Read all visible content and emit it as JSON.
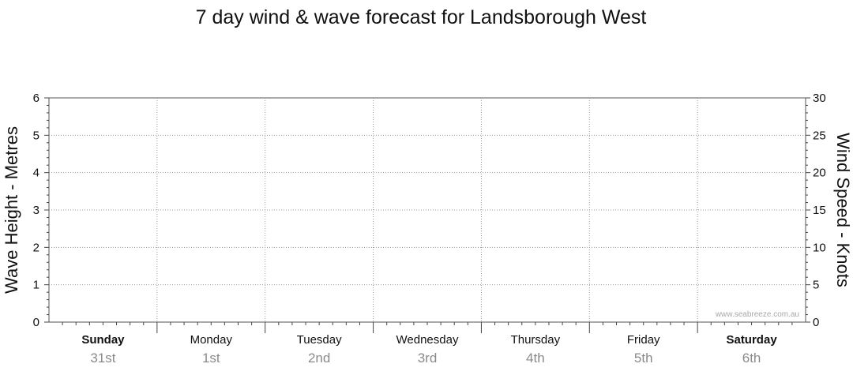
{
  "chart_data": {
    "type": "line",
    "title": "7 day wind & wave forecast for Landsborough West",
    "y_left": {
      "label": "Wave Height - Metres",
      "range": [
        0,
        6
      ],
      "ticks": [
        "0",
        "1",
        "2",
        "3",
        "4",
        "5",
        "6"
      ]
    },
    "y_right": {
      "label": "Wind Speed - Knots",
      "range": [
        0,
        30
      ],
      "ticks": [
        "0",
        "5",
        "10",
        "15",
        "20",
        "25",
        "30"
      ]
    },
    "x_days": [
      {
        "day": "Sunday",
        "date": "31st",
        "bold": true
      },
      {
        "day": "Monday",
        "date": "1st",
        "bold": false
      },
      {
        "day": "Tuesday",
        "date": "2nd",
        "bold": false
      },
      {
        "day": "Wednesday",
        "date": "3rd",
        "bold": false
      },
      {
        "day": "Thursday",
        "date": "4th",
        "bold": false
      },
      {
        "day": "Friday",
        "date": "5th",
        "bold": false
      },
      {
        "day": "Saturday",
        "date": "6th",
        "bold": true
      }
    ],
    "grid": true,
    "series": []
  },
  "watermark": "www.seabreeze.com.au"
}
